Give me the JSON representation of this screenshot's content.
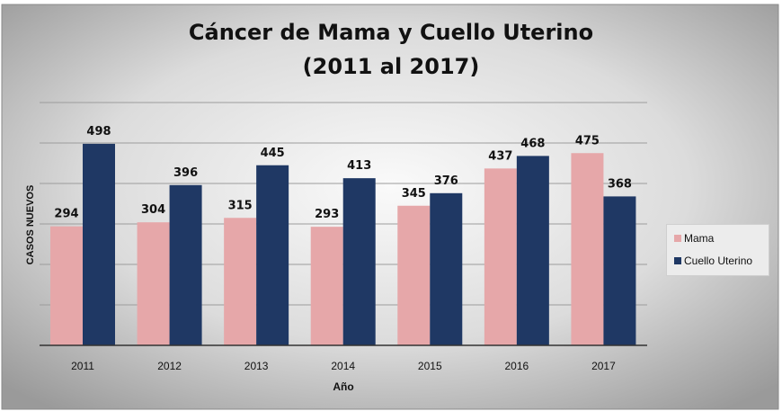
{
  "chart_data": {
    "type": "bar",
    "title": "Cáncer de Mama y Cuello Uterino",
    "subtitle": "(2011 al 2017)",
    "xlabel": "Año",
    "ylabel": "CASOS NUEVOS",
    "categories": [
      "2011",
      "2012",
      "2013",
      "2014",
      "2015",
      "2016",
      "2017"
    ],
    "series": [
      {
        "name": "Mama",
        "values": [
          294,
          304,
          315,
          293,
          345,
          437,
          475
        ],
        "color": "#e6a7a9"
      },
      {
        "name": "Cuello Uterino",
        "values": [
          498,
          396,
          445,
          413,
          376,
          468,
          368
        ],
        "color": "#1f3864"
      }
    ],
    "data_labels": true,
    "ylim": [
      0,
      600
    ],
    "gridlines": true,
    "legend_position": "right"
  },
  "colors": {
    "mama": "#e6a7a9",
    "cuello": "#1f3864",
    "background_center": "#fafafa",
    "background_edge": "#9a9a9a"
  }
}
